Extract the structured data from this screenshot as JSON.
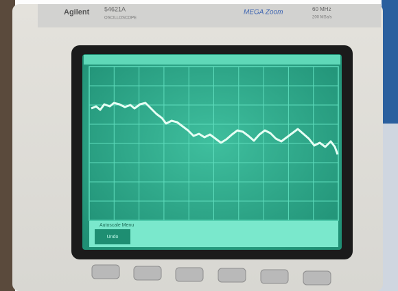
{
  "brand": "Agilent",
  "model": "54621A",
  "product": "OSCILLOSCOPE",
  "logo": "MEGA Zoom",
  "bandwidth": "60 MHz",
  "sample_rate": "200 MSa/s",
  "screen": {
    "menu_title": "Autoscale Menu",
    "softkey": "Undo"
  }
}
